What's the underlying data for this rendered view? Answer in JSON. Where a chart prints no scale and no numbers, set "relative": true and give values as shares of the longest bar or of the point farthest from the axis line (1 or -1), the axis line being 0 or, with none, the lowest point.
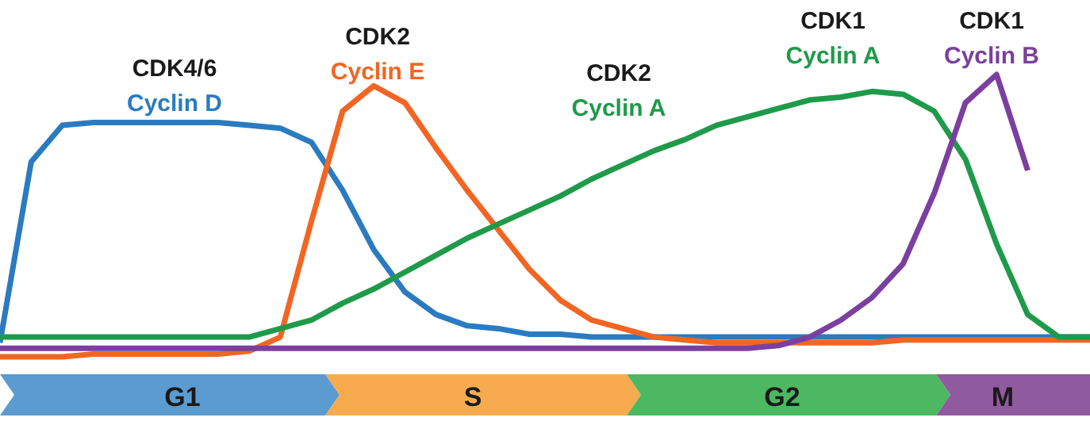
{
  "chart_data": {
    "type": "line",
    "relative": true,
    "tick_labels": false,
    "grid": false,
    "marker": "none",
    "line_style": "solid",
    "categories": [
      null,
      null,
      null,
      null,
      null,
      null,
      null,
      null,
      null,
      null,
      null,
      null,
      null,
      null,
      null,
      null,
      null,
      null,
      null,
      null,
      null,
      null,
      null,
      null,
      null,
      null,
      null,
      null,
      null,
      null,
      null,
      null,
      null,
      null,
      null,
      null
    ],
    "series": [
      {
        "name": "Cyclin D",
        "color": "#2a7bc0",
        "values": [
          0.05,
          0.69,
          0.82,
          0.83,
          0.83,
          0.83,
          0.83,
          0.83,
          0.82,
          0.81,
          0.76,
          0.59,
          0.38,
          0.23,
          0.15,
          0.11,
          0.1,
          0.08,
          0.08,
          0.07,
          0.07,
          0.07,
          0.07,
          0.07,
          0.07,
          0.07,
          0.07,
          0.07,
          0.07,
          0.07,
          0.07,
          0.07,
          0.07,
          0.07,
          0.07,
          0.07
        ]
      },
      {
        "name": "Cyclin E",
        "color": "#f26522",
        "values": [
          0,
          0,
          0,
          0.01,
          0.01,
          0.01,
          0.01,
          0.01,
          0.02,
          0.07,
          0.48,
          0.87,
          0.96,
          0.9,
          0.74,
          0.59,
          0.45,
          0.31,
          0.2,
          0.13,
          0.1,
          0.07,
          0.06,
          0.05,
          0.05,
          0.05,
          0.05,
          0.05,
          0.05,
          0.06,
          0.06,
          0.06,
          0.06,
          0.06,
          0.06,
          0.06
        ]
      },
      {
        "name": "Cyclin A",
        "color": "#1f9a4a",
        "values": [
          0.07,
          0.07,
          0.07,
          0.07,
          0.07,
          0.07,
          0.07,
          0.07,
          0.07,
          0.1,
          0.13,
          0.19,
          0.24,
          0.3,
          0.36,
          0.42,
          0.47,
          0.52,
          0.57,
          0.63,
          0.68,
          0.73,
          0.77,
          0.82,
          0.85,
          0.88,
          0.91,
          0.92,
          0.94,
          0.93,
          0.87,
          0.7,
          0.4,
          0.15,
          0.07,
          0.07
        ]
      },
      {
        "name": "Cyclin B",
        "color": "#7b3fa0",
        "values": [
          0.03,
          0.03,
          0.03,
          0.03,
          0.03,
          0.03,
          0.03,
          0.03,
          0.03,
          0.03,
          0.03,
          0.03,
          0.03,
          0.03,
          0.03,
          0.03,
          0.03,
          0.03,
          0.03,
          0.03,
          0.03,
          0.03,
          0.03,
          0.03,
          0.03,
          0.04,
          0.07,
          0.13,
          0.21,
          0.33,
          0.58,
          0.9,
          1,
          0.66,
          null,
          null
        ]
      }
    ],
    "annotations": [
      "CDK4/6",
      "CDK2",
      "CDK1",
      "CDK1",
      "CDK2",
      "Cyclin A",
      "G1",
      "S",
      "G2",
      "M"
    ]
  }
}
